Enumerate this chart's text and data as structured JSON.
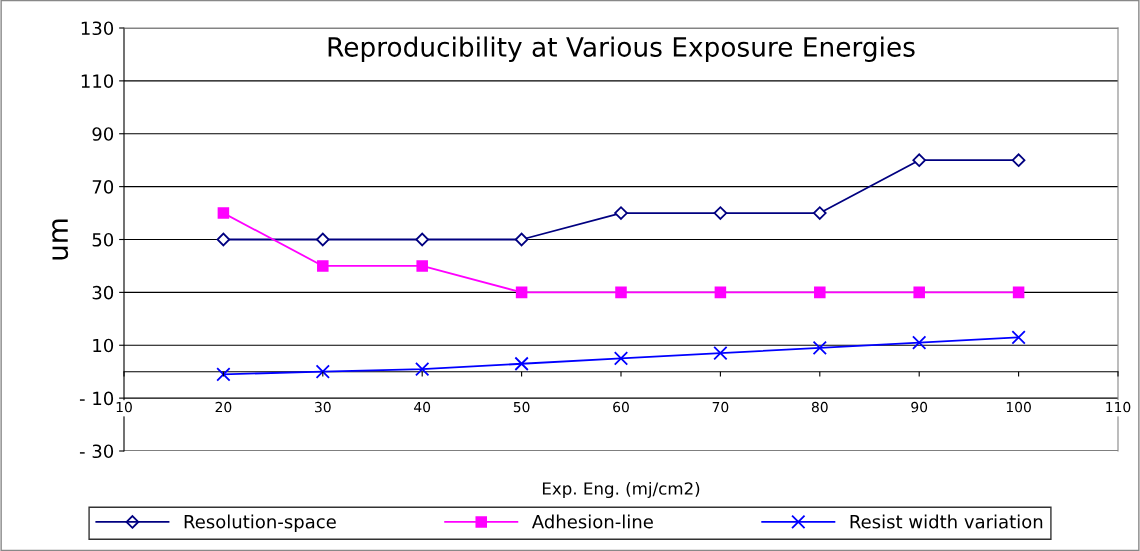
{
  "chart_data": {
    "type": "line",
    "title": "Reproducibility at Various Exposure Energies",
    "xlabel": "Exp. Eng. (mj/cm2)",
    "ylabel": "um",
    "x": [
      20,
      30,
      40,
      50,
      60,
      70,
      80,
      90,
      100
    ],
    "series": [
      {
        "name": "Resolution-space",
        "color": "#000080",
        "marker": "diamond",
        "values": [
          50,
          50,
          50,
          50,
          60,
          60,
          60,
          80,
          80
        ]
      },
      {
        "name": "Adhesion-line",
        "color": "#ff00ff",
        "marker": "square",
        "values": [
          60,
          40,
          40,
          30,
          30,
          30,
          30,
          30,
          30
        ]
      },
      {
        "name": "Resist width variation",
        "color": "#0000ff",
        "marker": "cross",
        "values": [
          -1,
          0,
          1,
          3,
          5,
          7,
          9,
          11,
          13
        ]
      }
    ],
    "xlim": [
      10,
      110
    ],
    "xticks": [
      10,
      20,
      30,
      40,
      50,
      60,
      70,
      80,
      90,
      100,
      110
    ],
    "ylim": [
      -30,
      130
    ],
    "yticks": [
      {
        "value": -30,
        "label": "- 30"
      },
      {
        "value": -10,
        "label": "- 10"
      },
      10,
      30,
      50,
      70,
      90,
      110,
      130
    ],
    "grid": "y",
    "legend": "bottom",
    "line_style": "solid"
  }
}
